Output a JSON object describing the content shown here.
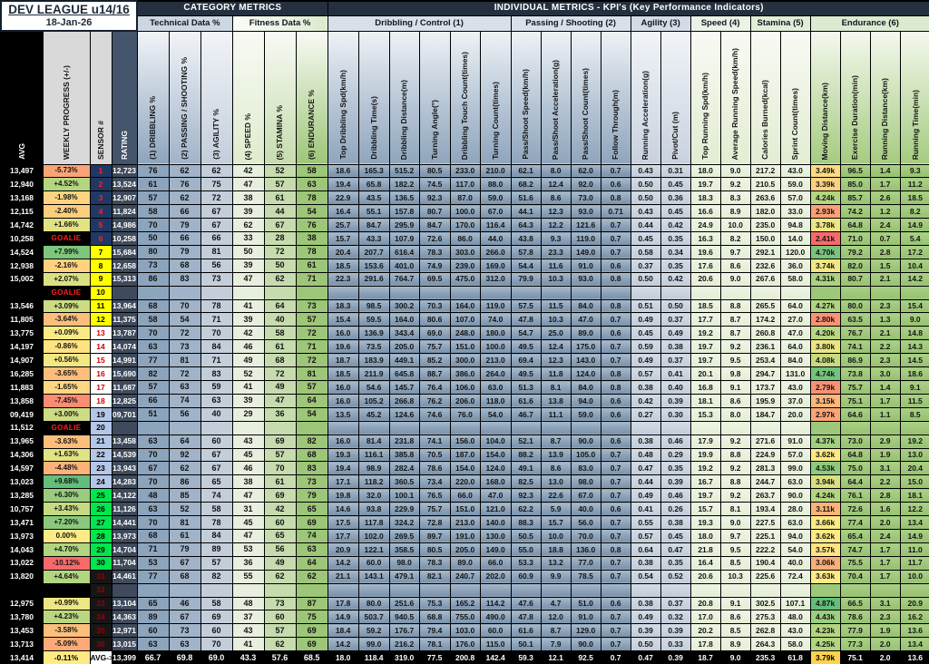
{
  "header": {
    "league_title": "DEV LEAGUE u14/16",
    "date": "18-Jan-26",
    "category_metrics_label": "CATEGORY  METRICS",
    "individual_metrics_label": "INDIVIDUAL METRICS - KPI's (Key Performance Indicators)",
    "groups": [
      {
        "label": "Technical Data %",
        "span": 3,
        "type": "tech"
      },
      {
        "label": "Fitness Data %",
        "span": 3,
        "type": "fit"
      },
      {
        "label": "Dribbling / Control (1)",
        "span": 6,
        "type": "db"
      },
      {
        "label": "Passing / Shooting (2)",
        "span": 4,
        "type": "db"
      },
      {
        "label": "Agility (3)",
        "span": 2,
        "type": "ag"
      },
      {
        "label": "Speed (4)",
        "span": 2,
        "type": "sp"
      },
      {
        "label": "Stamina (5)",
        "span": 2,
        "type": "st"
      },
      {
        "label": "Endurance (6)",
        "span": 4,
        "type": "en"
      }
    ],
    "columns": [
      "AVG",
      "WEEKLY PROGRESS (+/-)",
      "SENSOR #",
      "RATING",
      "(1) DRIBBLING %",
      "(2) PASSING / SHOOTING %",
      "(3) AGILITY %",
      "(4) SPEED %",
      "(5) STAMINA %",
      "(6) ENDURANCE %",
      "Top Dribbling Spd(km/h)",
      "Dribbling Time(s)",
      "Dribbling Distance(m)",
      "Turning Angle(°)",
      "Dribbling Touch Count(times)",
      "Turning Count(times)",
      "Pass/Shoot Speed(km/h)",
      "Pass/Shoot Acceleration(g)",
      "Pass/Shoot Count(times)",
      "Follow Through(m)",
      "Running Acceleration(g)",
      "Pivot/Cut (m)",
      "Top Running Spd(km/h)",
      "Average Running Speed(km/h)",
      "Calories Burned(kcal)",
      "Sprint Count(times)",
      "Moving Distance(km)",
      "Exercise Duration(min)",
      "Running Distance(km)",
      "Running Time(min)"
    ]
  },
  "colors": {
    "scale_red": "#f8696b",
    "scale_yellow": "#ffeb84",
    "scale_green": "#63be7b",
    "weekly_min": -10.12,
    "weekly_max": 9.68,
    "moving_min": 2.41,
    "moving_max": 4.87,
    "sensor_group_bg": [
      "#203864",
      "#ffff00",
      "#ffffff",
      "#b4c7e7",
      "#00e64d",
      "#161616"
    ],
    "sensor_group_fg": [
      "#ff2020",
      "#000000",
      "#d00000",
      "#000000",
      "#000000",
      "#9c0006"
    ]
  },
  "rows": [
    [
      "13,497",
      "-5.73%",
      "1",
      "12,723",
      "76",
      "62",
      "62",
      "42",
      "52",
      "58",
      "18.6",
      "165.3",
      "515.2",
      "80.5",
      "233.0",
      "210.0",
      "62.1",
      "8.0",
      "62.0",
      "0.7",
      "0.43",
      "0.31",
      "18.0",
      "9.0",
      "217.2",
      "43.0",
      "3.49k",
      "96.5",
      "1.4",
      "9.3"
    ],
    [
      "12,940",
      "+4.52%",
      "2",
      "13,524",
      "61",
      "76",
      "75",
      "47",
      "57",
      "63",
      "19.4",
      "65.8",
      "182.2",
      "74.5",
      "117.0",
      "88.0",
      "68.2",
      "12.4",
      "92.0",
      "0.6",
      "0.50",
      "0.45",
      "19.7",
      "9.2",
      "210.5",
      "59.0",
      "3.39k",
      "85.0",
      "1.7",
      "11.2"
    ],
    [
      "13,168",
      "-1.98%",
      "3",
      "12,907",
      "57",
      "62",
      "72",
      "38",
      "61",
      "78",
      "22.9",
      "43.5",
      "136.5",
      "92.3",
      "87.0",
      "59.0",
      "51.6",
      "8.6",
      "73.0",
      "0.8",
      "0.50",
      "0.36",
      "18.3",
      "8.3",
      "263.6",
      "57.0",
      "4.24k",
      "85.7",
      "2.6",
      "18.5"
    ],
    [
      "12,115",
      "-2.40%",
      "4",
      "11,824",
      "58",
      "66",
      "67",
      "39",
      "44",
      "54",
      "16.4",
      "55.1",
      "157.8",
      "80.7",
      "100.0",
      "67.0",
      "44.1",
      "12.3",
      "93.0",
      "0.71",
      "0.43",
      "0.45",
      "16.6",
      "8.9",
      "182.0",
      "33.0",
      "2.93k",
      "74.2",
      "1.2",
      "8.2"
    ],
    [
      "14,742",
      "+1.66%",
      "5",
      "14,986",
      "70",
      "79",
      "67",
      "62",
      "67",
      "76",
      "25.7",
      "84.7",
      "295.9",
      "84.7",
      "170.0",
      "116.4",
      "64.3",
      "12.2",
      "121.6",
      "0.7",
      "0.44",
      "0.42",
      "24.9",
      "10.0",
      "235.0",
      "94.8",
      "3.78k",
      "64.8",
      "2.4",
      "14.9"
    ],
    [
      "10,258",
      "GOALIE",
      "6",
      "10,258",
      "50",
      "66",
      "66",
      "33",
      "28",
      "38",
      "15.7",
      "43.3",
      "107.9",
      "72.6",
      "86.0",
      "44.0",
      "43.8",
      "9.3",
      "119.0",
      "0.7",
      "0.45",
      "0.35",
      "16.3",
      "8.2",
      "150.0",
      "14.0",
      "2.41k",
      "71.0",
      "0.7",
      "5.4"
    ],
    [
      "14,524",
      "+7.99%",
      "7",
      "15,684",
      "80",
      "79",
      "81",
      "50",
      "72",
      "78",
      "20.4",
      "207.7",
      "616.4",
      "78.3",
      "303.0",
      "266.0",
      "57.8",
      "23.3",
      "149.0",
      "0.7",
      "0.58",
      "0.34",
      "19.6",
      "9.7",
      "292.1",
      "120.0",
      "4.70k",
      "79.2",
      "2.8",
      "17.2"
    ],
    [
      "12,938",
      "-2.16%",
      "8",
      "12,658",
      "73",
      "68",
      "56",
      "39",
      "50",
      "61",
      "18.5",
      "153.6",
      "401.0",
      "74.9",
      "239.0",
      "169.0",
      "54.4",
      "11.6",
      "91.0",
      "0.6",
      "0.37",
      "0.35",
      "17.6",
      "8.6",
      "232.6",
      "36.0",
      "3.74k",
      "82.0",
      "1.5",
      "10.4"
    ],
    [
      "15,002",
      "+2.07%",
      "9",
      "15,313",
      "86",
      "83",
      "73",
      "47",
      "62",
      "71",
      "22.3",
      "291.6",
      "764.7",
      "69.5",
      "475.0",
      "312.0",
      "79.9",
      "10.3",
      "93.0",
      "0.8",
      "0.50",
      "0.42",
      "20.6",
      "9.0",
      "267.6",
      "58.0",
      "4.31k",
      "80.7",
      "2.1",
      "14.2"
    ],
    [
      "",
      "GOALIE",
      "10",
      "",
      "",
      "",
      "",
      "",
      "",
      "",
      "",
      "",
      "",
      "",
      "",
      "",
      "",
      "",
      "",
      "",
      "",
      "",
      "",
      "",
      "",
      "",
      "",
      "",
      "",
      ""
    ],
    [
      "13,546",
      "+3.09%",
      "11",
      "13,964",
      "68",
      "70",
      "78",
      "41",
      "64",
      "73",
      "18.3",
      "98.5",
      "300.2",
      "70.3",
      "164.0",
      "119.0",
      "57.5",
      "11.5",
      "84.0",
      "0.8",
      "0.51",
      "0.50",
      "18.5",
      "8.8",
      "265.5",
      "64.0",
      "4.27k",
      "80.0",
      "2.3",
      "15.4"
    ],
    [
      "11,805",
      "-3.64%",
      "12",
      "11,375",
      "58",
      "54",
      "71",
      "39",
      "40",
      "57",
      "15.4",
      "59.5",
      "164.0",
      "80.6",
      "107.0",
      "74.0",
      "47.8",
      "10.3",
      "47.0",
      "0.7",
      "0.49",
      "0.37",
      "17.7",
      "8.7",
      "174.2",
      "27.0",
      "2.80k",
      "63.5",
      "1.3",
      "9.0"
    ],
    [
      "13,775",
      "+0.09%",
      "13",
      "13,787",
      "70",
      "72",
      "70",
      "42",
      "58",
      "72",
      "16.0",
      "136.9",
      "343.4",
      "69.0",
      "248.0",
      "180.0",
      "54.7",
      "25.0",
      "89.0",
      "0.6",
      "0.45",
      "0.49",
      "19.2",
      "8.7",
      "260.8",
      "47.0",
      "4.20k",
      "76.7",
      "2.1",
      "14.8"
    ],
    [
      "14,197",
      "-0.86%",
      "14",
      "14,074",
      "63",
      "73",
      "84",
      "46",
      "61",
      "71",
      "19.6",
      "73.5",
      "205.0",
      "75.7",
      "151.0",
      "100.0",
      "49.5",
      "12.4",
      "175.0",
      "0.7",
      "0.59",
      "0.38",
      "19.7",
      "9.2",
      "236.1",
      "64.0",
      "3.80k",
      "74.1",
      "2.2",
      "14.3"
    ],
    [
      "14,907",
      "+0.56%",
      "15",
      "14,991",
      "77",
      "81",
      "71",
      "49",
      "68",
      "72",
      "18.7",
      "183.9",
      "449.1",
      "85.2",
      "300.0",
      "213.0",
      "69.4",
      "12.3",
      "143.0",
      "0.7",
      "0.49",
      "0.37",
      "19.7",
      "9.5",
      "253.4",
      "84.0",
      "4.08k",
      "86.9",
      "2.3",
      "14.5"
    ],
    [
      "16,285",
      "-3.65%",
      "16",
      "15,690",
      "82",
      "72",
      "83",
      "52",
      "72",
      "81",
      "18.5",
      "211.9",
      "645.8",
      "88.7",
      "386.0",
      "264.0",
      "49.5",
      "11.8",
      "124.0",
      "0.8",
      "0.57",
      "0.41",
      "20.1",
      "9.8",
      "294.7",
      "131.0",
      "4.74k",
      "73.8",
      "3.0",
      "18.6"
    ],
    [
      "11,883",
      "-1.65%",
      "17",
      "11,687",
      "57",
      "63",
      "59",
      "41",
      "49",
      "57",
      "16.0",
      "54.6",
      "145.7",
      "76.4",
      "106.0",
      "63.0",
      "51.3",
      "8.1",
      "84.0",
      "0.8",
      "0.38",
      "0.40",
      "16.8",
      "9.1",
      "173.7",
      "43.0",
      "2.79k",
      "75.7",
      "1.4",
      "9.1"
    ],
    [
      "13,858",
      "-7.45%",
      "18",
      "12,825",
      "66",
      "74",
      "63",
      "39",
      "47",
      "64",
      "16.0",
      "105.2",
      "266.8",
      "76.2",
      "206.0",
      "118.0",
      "61.6",
      "13.8",
      "94.0",
      "0.6",
      "0.42",
      "0.39",
      "18.1",
      "8.6",
      "195.9",
      "37.0",
      "3.15k",
      "75.1",
      "1.7",
      "11.5"
    ],
    [
      "09,419",
      "+3.00%",
      "19",
      "09,701",
      "51",
      "56",
      "40",
      "29",
      "36",
      "54",
      "13.5",
      "45.2",
      "124.6",
      "74.6",
      "76.0",
      "54.0",
      "46.7",
      "11.1",
      "59.0",
      "0.6",
      "0.27",
      "0.30",
      "15.3",
      "8.0",
      "184.7",
      "20.0",
      "2.97k",
      "64.6",
      "1.1",
      "8.5"
    ],
    [
      "11,512",
      "GOALIE",
      "20",
      "",
      "",
      "",
      "",
      "",
      "",
      "",
      "",
      "",
      "",
      "",
      "",
      "",
      "",
      "",
      "",
      "",
      "",
      "",
      "",
      "",
      "",
      "",
      "",
      "",
      "",
      ""
    ],
    [
      "13,965",
      "-3.63%",
      "21",
      "13,458",
      "63",
      "64",
      "60",
      "43",
      "69",
      "82",
      "16.0",
      "81.4",
      "231.8",
      "74.1",
      "156.0",
      "104.0",
      "52.1",
      "8.7",
      "90.0",
      "0.6",
      "0.38",
      "0.46",
      "17.9",
      "9.2",
      "271.6",
      "91.0",
      "4.37k",
      "73.0",
      "2.9",
      "19.2"
    ],
    [
      "14,306",
      "+1.63%",
      "22",
      "14,539",
      "70",
      "92",
      "67",
      "45",
      "57",
      "68",
      "19.3",
      "116.1",
      "385.8",
      "70.5",
      "187.0",
      "154.0",
      "88.2",
      "13.9",
      "105.0",
      "0.7",
      "0.48",
      "0.29",
      "19.9",
      "8.8",
      "224.9",
      "57.0",
      "3.62k",
      "64.8",
      "1.9",
      "13.0"
    ],
    [
      "14,597",
      "-4.48%",
      "23",
      "13,943",
      "67",
      "62",
      "67",
      "46",
      "70",
      "83",
      "19.4",
      "98.9",
      "282.4",
      "78.6",
      "154.0",
      "124.0",
      "49.1",
      "8.6",
      "83.0",
      "0.7",
      "0.47",
      "0.35",
      "19.2",
      "9.2",
      "281.3",
      "99.0",
      "4.53k",
      "75.0",
      "3.1",
      "20.4"
    ],
    [
      "13,023",
      "+9.68%",
      "24",
      "14,283",
      "70",
      "86",
      "65",
      "38",
      "61",
      "73",
      "17.1",
      "118.2",
      "360.5",
      "73.4",
      "220.0",
      "168.0",
      "82.5",
      "13.0",
      "98.0",
      "0.7",
      "0.44",
      "0.39",
      "16.7",
      "8.8",
      "244.7",
      "63.0",
      "3.94k",
      "64.4",
      "2.2",
      "15.0"
    ],
    [
      "13,285",
      "+6.30%",
      "25",
      "14,122",
      "48",
      "85",
      "74",
      "47",
      "69",
      "79",
      "19.8",
      "32.0",
      "100.1",
      "76.5",
      "66.0",
      "47.0",
      "92.3",
      "22.6",
      "67.0",
      "0.7",
      "0.49",
      "0.46",
      "19.7",
      "9.2",
      "263.7",
      "90.0",
      "4.24k",
      "76.1",
      "2.8",
      "18.1"
    ],
    [
      "10,757",
      "+3.43%",
      "26",
      "11,126",
      "63",
      "52",
      "58",
      "31",
      "42",
      "65",
      "14.6",
      "93.8",
      "229.9",
      "75.7",
      "151.0",
      "121.0",
      "62.2",
      "5.9",
      "40.0",
      "0.6",
      "0.41",
      "0.26",
      "15.7",
      "8.1",
      "193.4",
      "28.0",
      "3.11k",
      "72.6",
      "1.6",
      "12.2"
    ],
    [
      "13,471",
      "+7.20%",
      "27",
      "14,441",
      "70",
      "81",
      "78",
      "45",
      "60",
      "69",
      "17.5",
      "117.8",
      "324.2",
      "72.8",
      "213.0",
      "140.0",
      "88.3",
      "15.7",
      "56.0",
      "0.7",
      "0.55",
      "0.38",
      "19.3",
      "9.0",
      "227.5",
      "63.0",
      "3.66k",
      "77.4",
      "2.0",
      "13.4"
    ],
    [
      "13,973",
      "0.00%",
      "28",
      "13,973",
      "68",
      "61",
      "84",
      "47",
      "65",
      "74",
      "17.7",
      "102.0",
      "269.5",
      "89.7",
      "191.0",
      "130.0",
      "50.5",
      "10.0",
      "70.0",
      "0.7",
      "0.57",
      "0.45",
      "18.0",
      "9.7",
      "225.1",
      "94.0",
      "3.62k",
      "65.4",
      "2.4",
      "14.9"
    ],
    [
      "14,043",
      "+4.70%",
      "29",
      "14,704",
      "71",
      "79",
      "89",
      "53",
      "56",
      "63",
      "20.9",
      "122.1",
      "358.5",
      "80.5",
      "205.0",
      "149.0",
      "55.0",
      "18.8",
      "136.0",
      "0.8",
      "0.64",
      "0.47",
      "21.8",
      "9.5",
      "222.2",
      "54.0",
      "3.57k",
      "74.7",
      "1.7",
      "11.0"
    ],
    [
      "13,022",
      "-10.12%",
      "30",
      "11,704",
      "53",
      "67",
      "57",
      "36",
      "49",
      "64",
      "14.2",
      "60.0",
      "98.0",
      "78.3",
      "89.0",
      "66.0",
      "53.3",
      "13.2",
      "77.0",
      "0.7",
      "0.38",
      "0.35",
      "16.4",
      "8.5",
      "190.4",
      "40.0",
      "3.06k",
      "75.5",
      "1.7",
      "11.7"
    ],
    [
      "13,820",
      "+4.64%",
      "31",
      "14,461",
      "77",
      "68",
      "82",
      "55",
      "62",
      "62",
      "21.1",
      "143.1",
      "479.1",
      "82.1",
      "240.7",
      "202.0",
      "60.9",
      "9.9",
      "78.5",
      "0.7",
      "0.54",
      "0.52",
      "20.6",
      "10.3",
      "225.6",
      "72.4",
      "3.63k",
      "70.4",
      "1.7",
      "10.0"
    ],
    [
      "",
      "",
      "32",
      "",
      "",
      "",
      "",
      "",
      "",
      "",
      "",
      "",
      "",
      "",
      "",
      "",
      "",
      "",
      "",
      "",
      "",
      "",
      "",
      "",
      "",
      "",
      "",
      "",
      "",
      ""
    ],
    [
      "12,975",
      "+0.99%",
      "33",
      "13,104",
      "65",
      "46",
      "58",
      "48",
      "73",
      "87",
      "17.8",
      "80.0",
      "251.6",
      "75.3",
      "165.2",
      "114.2",
      "47.6",
      "4.7",
      "51.0",
      "0.6",
      "0.38",
      "0.37",
      "20.8",
      "9.1",
      "302.5",
      "107.1",
      "4.87k",
      "66.5",
      "3.1",
      "20.9"
    ],
    [
      "13,780",
      "+4.23%",
      "34",
      "14,363",
      "89",
      "67",
      "69",
      "37",
      "60",
      "75",
      "14.9",
      "503.7",
      "940.5",
      "68.8",
      "755.0",
      "490.0",
      "47.8",
      "12.0",
      "91.0",
      "0.7",
      "0.49",
      "0.32",
      "17.0",
      "8.6",
      "275.3",
      "48.0",
      "4.43k",
      "78.6",
      "2.3",
      "16.2"
    ],
    [
      "13,453",
      "-3.58%",
      "35",
      "12,971",
      "60",
      "73",
      "60",
      "43",
      "57",
      "69",
      "18.4",
      "59.2",
      "176.7",
      "79.4",
      "103.0",
      "60.0",
      "61.6",
      "8.7",
      "129.0",
      "0.7",
      "0.39",
      "0.39",
      "20.2",
      "8.5",
      "262.8",
      "43.0",
      "4.23k",
      "77.9",
      "1.9",
      "13.6"
    ],
    [
      "13,713",
      "-5.09%",
      "36",
      "13,015",
      "63",
      "63",
      "70",
      "41",
      "62",
      "69",
      "14.2",
      "99.0",
      "216.2",
      "78.1",
      "176.0",
      "115.0",
      "50.1",
      "7.9",
      "90.0",
      "0.7",
      "0.50",
      "0.33",
      "17.8",
      "8.9",
      "264.3",
      "58.0",
      "4.25k",
      "77.3",
      "2.0",
      "13.4"
    ]
  ],
  "avg_row": [
    "13,414",
    "-0.11%",
    "AVG->",
    "13,399",
    "66.7",
    "69.8",
    "69.0",
    "43.3",
    "57.6",
    "68.5",
    "18.0",
    "118.4",
    "319.0",
    "77.5",
    "200.8",
    "142.4",
    "59.3",
    "12.1",
    "92.5",
    "0.7",
    "0.47",
    "0.39",
    "18.7",
    "9.0",
    "235.3",
    "61.8",
    "3.79k",
    "75.1",
    "2.0",
    "13.6"
  ]
}
